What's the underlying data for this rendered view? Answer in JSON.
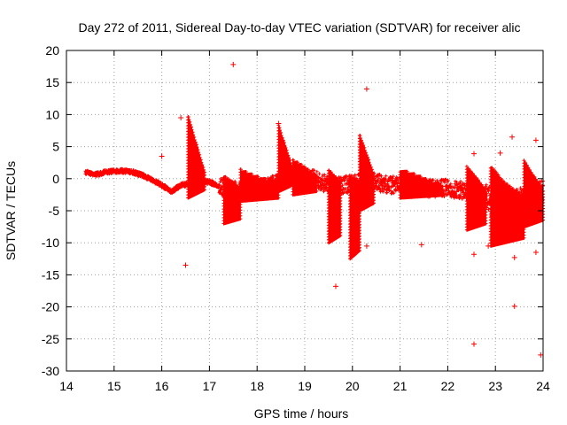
{
  "chart_data": {
    "type": "scatter",
    "title": "Day 272 of 2011, Sidereal Day-to-day VTEC variation (SDTVAR) for receiver alic",
    "xlabel": "GPS time / hours",
    "ylabel": "SDTVAR / TECUs",
    "xlim": [
      14,
      24
    ],
    "ylim": [
      -30,
      20
    ],
    "xticks": [
      "14",
      "15",
      "16",
      "17",
      "18",
      "19",
      "20",
      "21",
      "22",
      "23",
      "24"
    ],
    "yticks": [
      "-30",
      "-25",
      "-20",
      "-15",
      "-10",
      "-5",
      "0",
      "5",
      "10",
      "15",
      "20"
    ],
    "grid": true,
    "marker": "plus",
    "color": "#ff0000",
    "series": [
      {
        "name": "SDTVAR",
        "trend": [
          [
            14.4,
            1.0
          ],
          [
            14.6,
            0.6
          ],
          [
            14.8,
            1.0
          ],
          [
            15.0,
            1.2
          ],
          [
            15.2,
            1.2
          ],
          [
            15.4,
            1.0
          ],
          [
            15.6,
            0.5
          ],
          [
            15.8,
            -0.2
          ],
          [
            16.0,
            -1.0
          ],
          [
            16.2,
            -2.0
          ],
          [
            16.4,
            -1.0
          ],
          [
            16.6,
            -0.8
          ],
          [
            16.8,
            -0.6
          ],
          [
            17.0,
            -0.5
          ],
          [
            17.3,
            -1.5
          ],
          [
            17.6,
            -1.8
          ],
          [
            18.0,
            -1.5
          ],
          [
            18.3,
            -1.0
          ],
          [
            18.6,
            0.2
          ],
          [
            18.9,
            0.5
          ],
          [
            19.2,
            0.0
          ],
          [
            19.5,
            -1.0
          ],
          [
            19.8,
            -1.0
          ],
          [
            20.2,
            -0.5
          ],
          [
            20.5,
            -0.5
          ],
          [
            20.8,
            -1.0
          ],
          [
            21.2,
            -1.0
          ],
          [
            21.6,
            -1.5
          ],
          [
            22.0,
            -1.5
          ],
          [
            22.4,
            -2.0
          ],
          [
            22.8,
            -2.5
          ],
          [
            23.1,
            -5.5
          ],
          [
            23.4,
            -4.0
          ],
          [
            23.7,
            -3.0
          ],
          [
            24.0,
            -2.5
          ]
        ],
        "bands": [
          [
            16.55,
            16.9,
            -3.0,
            10.0
          ],
          [
            17.3,
            17.65,
            -7.0,
            0.5
          ],
          [
            17.65,
            18.45,
            -3.5,
            1.5
          ],
          [
            18.45,
            18.75,
            -2.0,
            8.5
          ],
          [
            18.75,
            19.25,
            -2.5,
            3.0
          ],
          [
            19.5,
            19.75,
            -10.0,
            1.5
          ],
          [
            19.95,
            20.15,
            -12.5,
            0.5
          ],
          [
            20.15,
            20.45,
            -5.0,
            7.0
          ],
          [
            21.0,
            21.9,
            -3.0,
            1.5
          ],
          [
            22.4,
            22.8,
            -8.0,
            2.0
          ],
          [
            22.9,
            23.6,
            -10.5,
            2.0
          ],
          [
            23.6,
            24.0,
            -7.5,
            3.0
          ]
        ],
        "outliers": [
          [
            16.0,
            3.5
          ],
          [
            16.4,
            9.5
          ],
          [
            16.5,
            -13.5
          ],
          [
            17.5,
            17.8
          ],
          [
            18.45,
            8.6
          ],
          [
            19.65,
            -16.8
          ],
          [
            20.3,
            14.0
          ],
          [
            20.3,
            -10.5
          ],
          [
            21.45,
            -10.3
          ],
          [
            22.55,
            3.9
          ],
          [
            22.55,
            -11.8
          ],
          [
            22.55,
            -25.8
          ],
          [
            22.85,
            -10.5
          ],
          [
            23.1,
            4.0
          ],
          [
            23.35,
            6.5
          ],
          [
            23.4,
            -12.3
          ],
          [
            23.4,
            -19.9
          ],
          [
            23.85,
            -11.5
          ],
          [
            23.85,
            6.0
          ],
          [
            23.95,
            -27.5
          ]
        ]
      }
    ]
  }
}
